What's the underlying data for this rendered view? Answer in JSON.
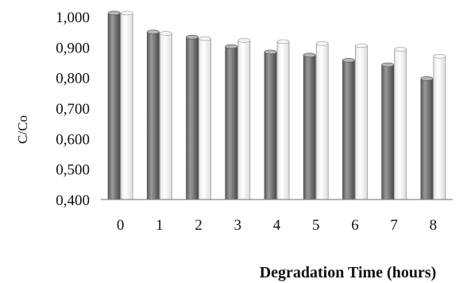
{
  "chart_data": {
    "type": "bar",
    "title": "",
    "xlabel": "Degradation Time (hours)",
    "ylabel": "C/Co",
    "ylim": [
      0.4,
      1.0
    ],
    "yticks": [
      "0,400",
      "0,500",
      "0,600",
      "0,700",
      "0,800",
      "0,900",
      "1,000"
    ],
    "categories": [
      "0",
      "1",
      "2",
      "3",
      "4",
      "5",
      "6",
      "7",
      "8"
    ],
    "series": [
      {
        "values": [
          1.012,
          0.95,
          0.933,
          0.902,
          0.884,
          0.874,
          0.857,
          0.842,
          0.797
        ]
      },
      {
        "values": [
          1.012,
          0.945,
          0.928,
          0.922,
          0.918,
          0.912,
          0.905,
          0.893,
          0.87
        ]
      }
    ],
    "grid": false,
    "legend": "none",
    "colors": [
      "#7f7f7f",
      "#ffffff"
    ]
  }
}
